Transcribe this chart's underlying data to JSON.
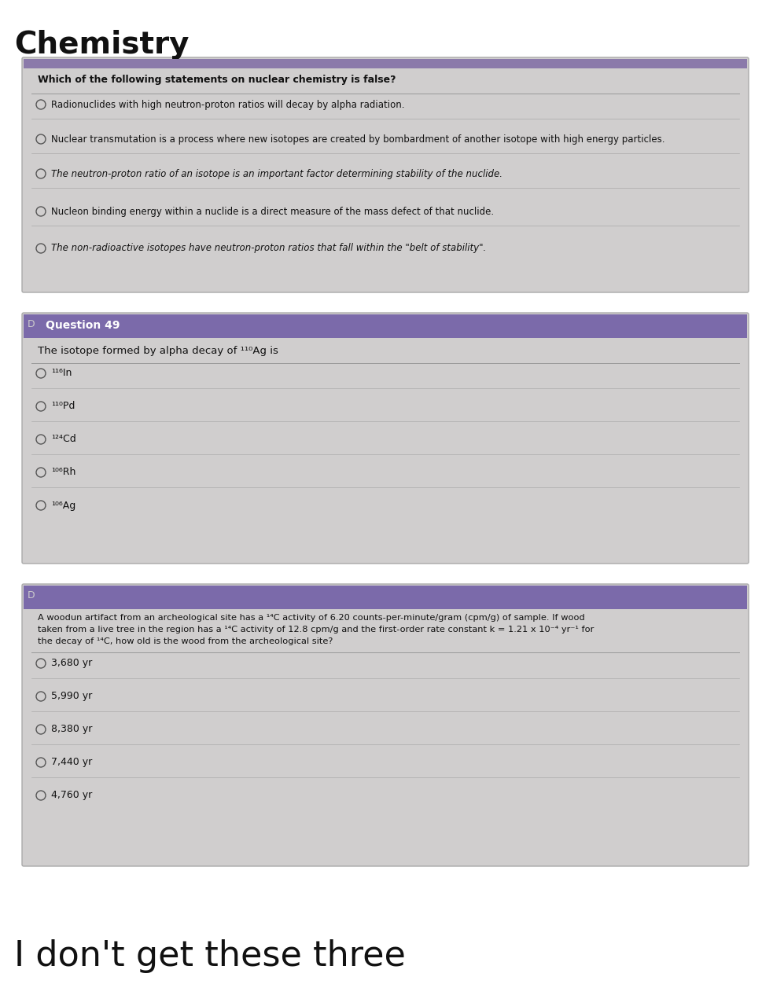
{
  "title": "Chemistry",
  "title_fontsize": 28,
  "title_color": "#111111",
  "bg_color": "#ffffff",
  "q1_header_bg": "#8b7aaa",
  "q1_question": "Which of the following statements on nuclear chemistry is false?",
  "q1_options": [
    "Radionuclides with high neutron-proton ratios will decay by alpha radiation.",
    "Nuclear transmutation is a process where new isotopes are created by bombardment of another isotope with high energy particles.",
    "The neutron-proton ratio of an isotope is an important factor determining stability of the nuclide.",
    "Nucleon binding energy within a nuclide is a direct measure of the mass defect of that nuclide.",
    "The non-radioactive isotopes have neutron-proton ratios that fall within the \"belt of stability\"."
  ],
  "q1_option_styles": [
    "normal",
    "normal",
    "italic",
    "normal",
    "italic"
  ],
  "q2_header": "Question 49",
  "q2_header_bg": "#7b6aaa",
  "q2_question": "The isotope formed by alpha decay of ¹¹⁰Ag is",
  "q2_options": [
    "¹¹⁶In",
    "¹¹⁰Pd",
    "¹²⁴Cd",
    "¹⁰⁶Rh",
    "¹⁰⁶Ag"
  ],
  "q3_header_bg": "#7b6aaa",
  "q3_line1": "A woodun artifact from an archeological site has a ¹⁴C activity of 6.20 counts-per-minute/gram (cpm/g) of sample. If wood",
  "q3_line2": "taken from a live tree in the region has a ¹⁴C activity of 12.8 cpm/g and the first-order rate constant k = 1.21 x 10⁻⁴ yr⁻¹ for",
  "q3_line3": "the decay of ¹⁴C, how old is the wood from the archeological site?",
  "q3_options": [
    "3,680 yr",
    "5,990 yr",
    "8,380 yr",
    "7,440 yr",
    "4,760 yr"
  ],
  "footer_text": "I don't get these three",
  "footer_fontsize": 32,
  "footer_color": "#111111"
}
